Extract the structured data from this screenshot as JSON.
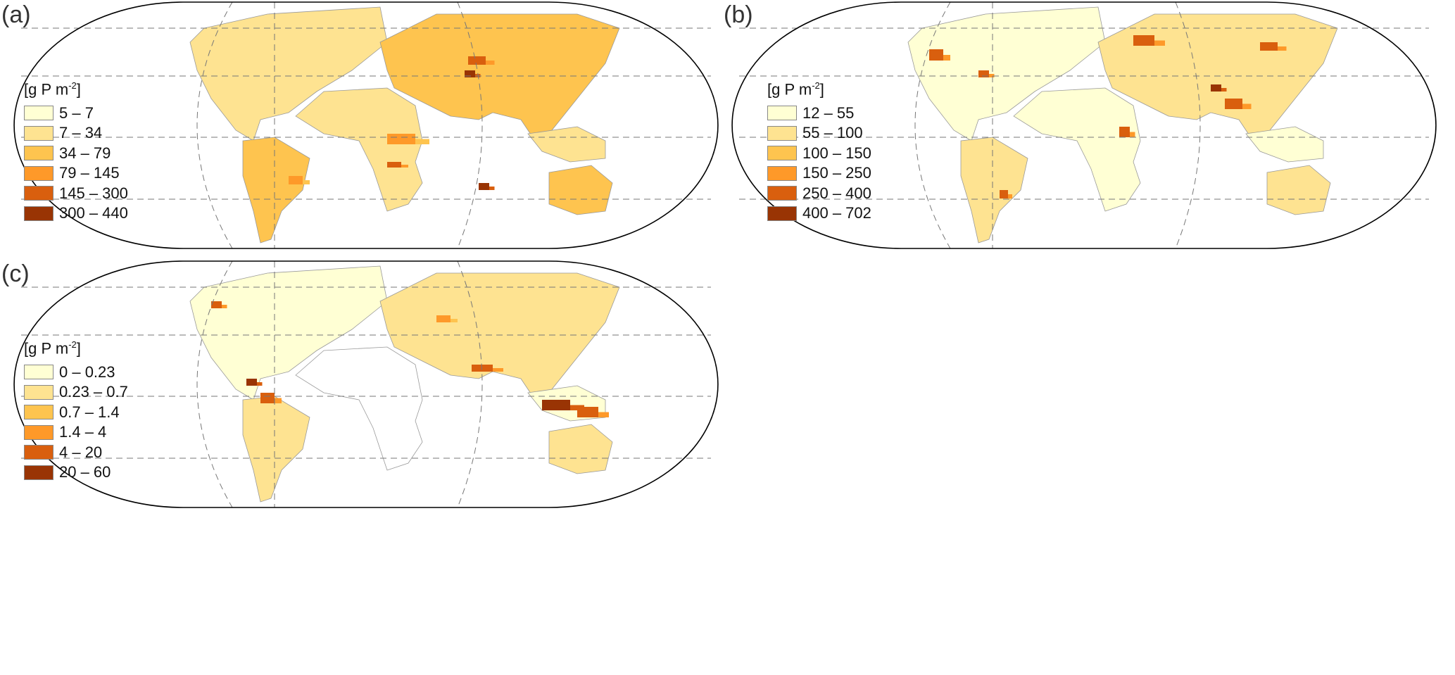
{
  "colors": [
    "#ffffd4",
    "#fee391",
    "#fec44f",
    "#fe9929",
    "#d95f0e",
    "#993404"
  ],
  "panels": [
    {
      "label": "(a)",
      "unit": "[g P m-2]",
      "unit_base": "[g P m",
      "unit_sup": "-2",
      "unit_end": "]",
      "legend": [
        "5 – 7",
        "7 – 34",
        "34 – 79",
        "79 – 145",
        "145 – 300",
        "300 – 440"
      ]
    },
    {
      "label": "(b)",
      "unit": "[g P m-2]",
      "unit_base": "[g P m",
      "unit_sup": "-2",
      "unit_end": "]",
      "legend": [
        "12 – 55",
        "55 – 100",
        "100 – 150",
        "150 – 250",
        "250 – 400",
        "400 – 702"
      ]
    },
    {
      "label": "(c)",
      "unit": "[g P m-2]",
      "unit_base": "[g P m",
      "unit_sup": "-2",
      "unit_end": "]",
      "legend": [
        "0 – 0.23",
        "0.23 – 0.7",
        "0.7 – 1.4",
        "1.4 – 4",
        "4 – 20",
        "20 – 60"
      ]
    }
  ]
}
